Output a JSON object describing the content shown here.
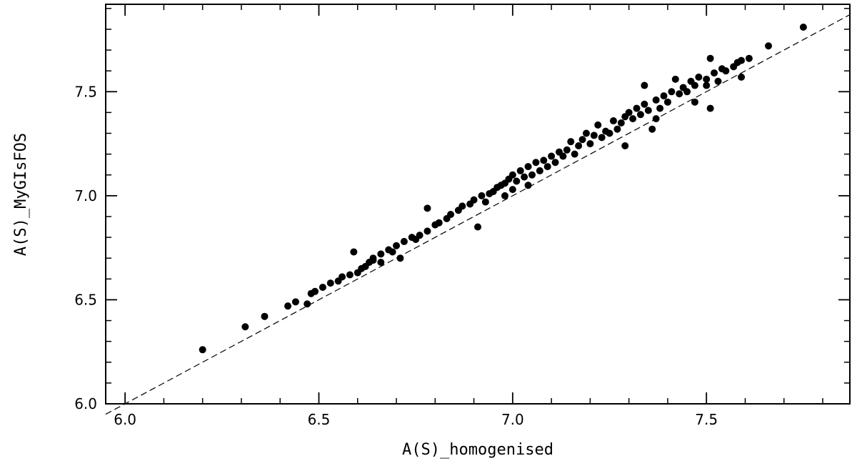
{
  "chart_data": {
    "type": "scatter",
    "title": "",
    "xlabel": "A(S)_homogenised",
    "ylabel": "A(S)_MyGIsFOS",
    "xlim": [
      5.95,
      7.87
    ],
    "ylim": [
      6.0,
      7.92
    ],
    "x_ticks": [
      6.0,
      6.5,
      7.0,
      7.5
    ],
    "x_tick_labels": [
      "6.0",
      "6.5",
      "7.0",
      "7.5"
    ],
    "y_ticks": [
      6.0,
      6.5,
      7.0,
      7.5
    ],
    "y_tick_labels": [
      "6.0",
      "6.5",
      "7.0",
      "7.5"
    ],
    "x_minor_step": 0.1,
    "y_minor_step": 0.1,
    "grid": false,
    "reference_line": {
      "style": "dashed",
      "x": [
        5.95,
        7.87
      ],
      "y": [
        5.95,
        7.87
      ]
    },
    "series": [
      {
        "marker_color": "#000000",
        "points": [
          [
            6.2,
            6.26
          ],
          [
            6.31,
            6.37
          ],
          [
            6.36,
            6.42
          ],
          [
            6.42,
            6.47
          ],
          [
            6.44,
            6.49
          ],
          [
            6.47,
            6.48
          ],
          [
            6.48,
            6.53
          ],
          [
            6.49,
            6.54
          ],
          [
            6.51,
            6.56
          ],
          [
            6.53,
            6.58
          ],
          [
            6.55,
            6.59
          ],
          [
            6.56,
            6.61
          ],
          [
            6.58,
            6.62
          ],
          [
            6.59,
            6.73
          ],
          [
            6.6,
            6.63
          ],
          [
            6.61,
            6.65
          ],
          [
            6.62,
            6.66
          ],
          [
            6.63,
            6.68
          ],
          [
            6.64,
            6.69
          ],
          [
            6.64,
            6.7
          ],
          [
            6.66,
            6.72
          ],
          [
            6.66,
            6.68
          ],
          [
            6.68,
            6.74
          ],
          [
            6.69,
            6.73
          ],
          [
            6.7,
            6.76
          ],
          [
            6.71,
            6.7
          ],
          [
            6.72,
            6.78
          ],
          [
            6.74,
            6.8
          ],
          [
            6.75,
            6.79
          ],
          [
            6.76,
            6.81
          ],
          [
            6.78,
            6.83
          ],
          [
            6.78,
            6.94
          ],
          [
            6.8,
            6.86
          ],
          [
            6.81,
            6.87
          ],
          [
            6.83,
            6.89
          ],
          [
            6.84,
            6.91
          ],
          [
            6.86,
            6.93
          ],
          [
            6.87,
            6.95
          ],
          [
            6.89,
            6.96
          ],
          [
            6.9,
            6.98
          ],
          [
            6.91,
            6.85
          ],
          [
            6.92,
            7.0
          ],
          [
            6.93,
            6.97
          ],
          [
            6.94,
            7.01
          ],
          [
            6.95,
            7.02
          ],
          [
            6.96,
            7.04
          ],
          [
            6.97,
            7.05
          ],
          [
            6.98,
            7.0
          ],
          [
            6.98,
            7.06
          ],
          [
            6.99,
            7.08
          ],
          [
            7.0,
            7.03
          ],
          [
            7.0,
            7.1
          ],
          [
            7.01,
            7.07
          ],
          [
            7.02,
            7.12
          ],
          [
            7.03,
            7.09
          ],
          [
            7.04,
            7.14
          ],
          [
            7.04,
            7.05
          ],
          [
            7.05,
            7.1
          ],
          [
            7.06,
            7.16
          ],
          [
            7.07,
            7.12
          ],
          [
            7.08,
            7.17
          ],
          [
            7.09,
            7.14
          ],
          [
            7.1,
            7.19
          ],
          [
            7.11,
            7.16
          ],
          [
            7.12,
            7.21
          ],
          [
            7.13,
            7.19
          ],
          [
            7.14,
            7.22
          ],
          [
            7.15,
            7.26
          ],
          [
            7.16,
            7.2
          ],
          [
            7.17,
            7.24
          ],
          [
            7.18,
            7.27
          ],
          [
            7.19,
            7.3
          ],
          [
            7.2,
            7.25
          ],
          [
            7.21,
            7.29
          ],
          [
            7.22,
            7.34
          ],
          [
            7.23,
            7.28
          ],
          [
            7.24,
            7.31
          ],
          [
            7.25,
            7.3
          ],
          [
            7.26,
            7.36
          ],
          [
            7.27,
            7.32
          ],
          [
            7.28,
            7.35
          ],
          [
            7.29,
            7.24
          ],
          [
            7.29,
            7.38
          ],
          [
            7.3,
            7.4
          ],
          [
            7.31,
            7.37
          ],
          [
            7.32,
            7.42
          ],
          [
            7.33,
            7.39
          ],
          [
            7.34,
            7.44
          ],
          [
            7.35,
            7.41
          ],
          [
            7.36,
            7.32
          ],
          [
            7.37,
            7.46
          ],
          [
            7.38,
            7.42
          ],
          [
            7.39,
            7.48
          ],
          [
            7.4,
            7.45
          ],
          [
            7.41,
            7.5
          ],
          [
            7.42,
            7.56
          ],
          [
            7.43,
            7.49
          ],
          [
            7.44,
            7.52
          ],
          [
            7.45,
            7.5
          ],
          [
            7.46,
            7.55
          ],
          [
            7.47,
            7.53
          ],
          [
            7.48,
            7.57
          ],
          [
            7.5,
            7.56
          ],
          [
            7.51,
            7.66
          ],
          [
            7.52,
            7.59
          ],
          [
            7.53,
            7.55
          ],
          [
            7.54,
            7.61
          ],
          [
            7.55,
            7.6
          ],
          [
            7.57,
            7.62
          ],
          [
            7.58,
            7.64
          ],
          [
            7.59,
            7.65
          ],
          [
            7.61,
            7.66
          ],
          [
            7.66,
            7.72
          ],
          [
            7.75,
            7.81
          ],
          [
            7.51,
            7.42
          ],
          [
            7.47,
            7.45
          ],
          [
            7.5,
            7.53
          ],
          [
            7.59,
            7.57
          ],
          [
            7.37,
            7.37
          ],
          [
            7.34,
            7.53
          ]
        ]
      }
    ]
  }
}
